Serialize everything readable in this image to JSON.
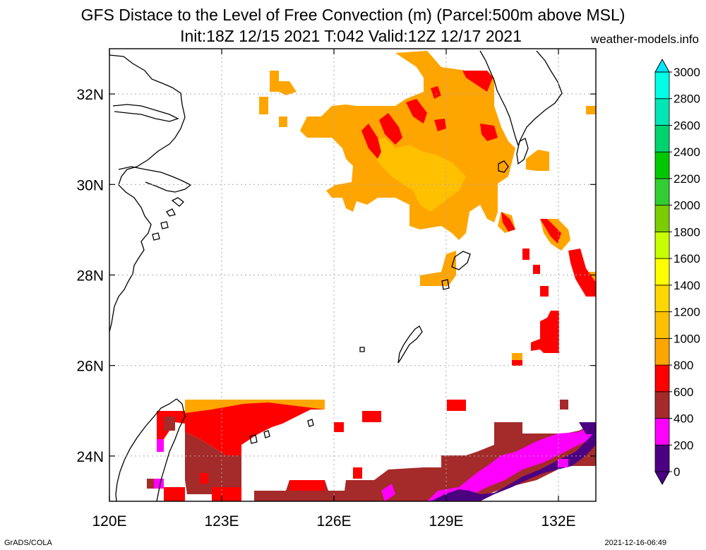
{
  "title": {
    "line1": "GFS Distace to the Level of Free Convection (m) (Parcel:500m above MSL)",
    "line2": "Init:18Z 12/15 2021 T:042 Valid:12Z 12/17 2021"
  },
  "site": "weather-models.info",
  "footer": {
    "left": "GrADS/COLA",
    "right": "2021-12-16-06:49"
  },
  "map": {
    "lon_range": [
      120,
      133
    ],
    "lat_range": [
      23,
      33
    ],
    "x_ticks": [
      {
        "value": 120,
        "label": "120E"
      },
      {
        "value": 123,
        "label": "123E"
      },
      {
        "value": 126,
        "label": "126E"
      },
      {
        "value": 129,
        "label": "129E"
      },
      {
        "value": 132,
        "label": "132E"
      }
    ],
    "y_ticks": [
      {
        "value": 24,
        "label": "24N"
      },
      {
        "value": 26,
        "label": "26N"
      },
      {
        "value": 28,
        "label": "28N"
      },
      {
        "value": 30,
        "label": "30N"
      },
      {
        "value": 32,
        "label": "32N"
      }
    ],
    "grid": true
  },
  "colorbar": {
    "levels": [
      "0",
      "200",
      "400",
      "600",
      "800",
      "1000",
      "1200",
      "1400",
      "1600",
      "1800",
      "2000",
      "2200",
      "2400",
      "2600",
      "2800",
      "3000"
    ],
    "colors": [
      "#4b0082",
      "#ff00ff",
      "#a52a2a",
      "#ff0000",
      "#ffa500",
      "#ffc000",
      "#ffd700",
      "#ffff00",
      "#c8ff00",
      "#7ccd00",
      "#32cd32",
      "#00c800",
      "#00d26e",
      "#00e6b4",
      "#00ffe6",
      "#00e6ff"
    ],
    "extend": "both"
  },
  "colors": {
    "purple": "#4b0082",
    "magenta": "#ff00ff",
    "brown": "#a52a2a",
    "red": "#ff0000",
    "orange": "#ffa500",
    "lightorange": "#ffc000"
  }
}
